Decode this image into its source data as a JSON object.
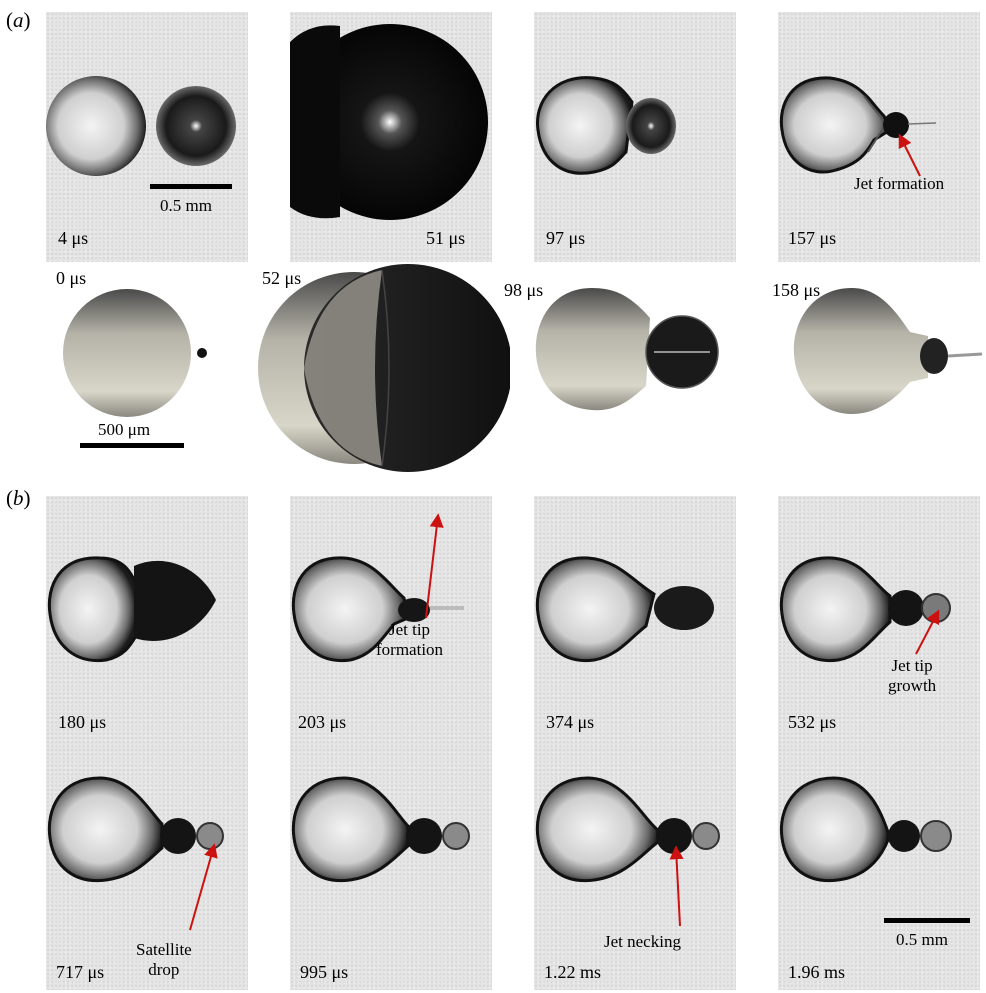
{
  "panels": {
    "a": {
      "label": "(a)",
      "label_letter": "a",
      "experiment_times": [
        "4 μs",
        "51 μs",
        "97 μs",
        "157 μs"
      ],
      "simulation_times": [
        "0 μs",
        "52 μs",
        "98 μs",
        "158 μs"
      ],
      "annotations": {
        "jet_formation": "Jet formation"
      },
      "scale_mm": "0.5 mm",
      "scale_um": "500 μm"
    },
    "b": {
      "label": "(b)",
      "label_letter": "b",
      "times": [
        "180 μs",
        "203 μs",
        "374 μs",
        "532 μs",
        "717 μs",
        "995 μs",
        "1.22 ms",
        "1.96 ms"
      ],
      "annotations": {
        "jet_tip_formation_1": "Jet tip",
        "jet_tip_formation_2": "formation",
        "jet_tip_growth_1": "Jet tip",
        "jet_tip_growth_2": "growth",
        "satellite_drop_1": "Satellite",
        "satellite_drop_2": "drop",
        "jet_necking": "Jet necking"
      },
      "scale_mm": "0.5 mm"
    }
  },
  "colors": {
    "arrow": "#cc1111",
    "frame_bg": "#e4e4e4"
  }
}
